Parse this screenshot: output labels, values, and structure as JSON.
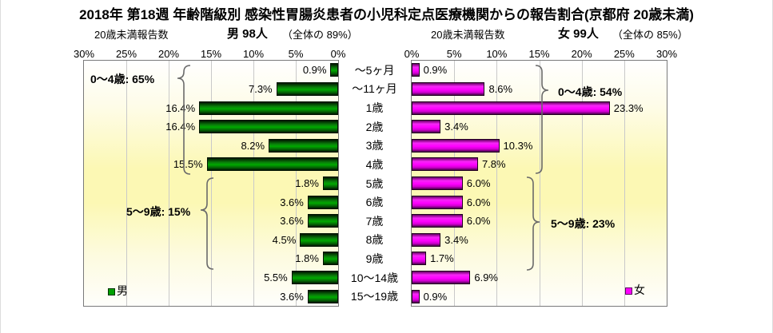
{
  "title": "2018年 第18週 年齢階級別 感染性胃腸炎患者の小児科定点医療機関からの報告割合(京都府 20歳未満)",
  "left_header": {
    "group_label": "20歳未満報告数",
    "stat": "男 98人",
    "total_note": "（全体の 89%）"
  },
  "right_header": {
    "group_label": "20歳未満報告数",
    "stat": "女 99人",
    "total_note": "（全体の 85%）"
  },
  "axis": {
    "left_ticks": [
      "30%",
      "25%",
      "20%",
      "15%",
      "10%",
      "5%",
      "0%"
    ],
    "right_ticks": [
      "0%",
      "5%",
      "10%",
      "15%",
      "20%",
      "25%",
      "30%"
    ]
  },
  "annotations": {
    "male_0_4": "0～4歳: 65%",
    "male_5_9": "5～9歳: 15%",
    "female_0_4": "0～4歳: 54%",
    "female_5_9": "5～9歳: 23%"
  },
  "legend": {
    "male": "男",
    "female": "女"
  },
  "colors": {
    "male_bar": "#00A000",
    "female_bar": "#FF00FF",
    "plot_band_yellow": "#FCF8B4",
    "gridline": "#C9C9C9",
    "plot_border": "#7A7A7A"
  },
  "chart_data": {
    "type": "bar",
    "orientation": "horizontal",
    "title": "2018年 第18週 年齢階級別 感染性胃腸炎患者の小児科定点医療機関からの報告割合(京都府 20歳未満)",
    "categories": [
      "～5ヶ月",
      "～11ヶ月",
      "1歳",
      "2歳",
      "3歳",
      "4歳",
      "5歳",
      "6歳",
      "7歳",
      "8歳",
      "9歳",
      "10～14歳",
      "15～19歳"
    ],
    "series": [
      {
        "name": "男",
        "values": [
          0.9,
          7.3,
          16.4,
          16.4,
          8.2,
          15.5,
          1.8,
          3.6,
          3.6,
          4.5,
          1.8,
          5.5,
          3.6
        ]
      },
      {
        "name": "女",
        "values": [
          0.9,
          8.6,
          23.3,
          3.4,
          10.3,
          7.8,
          6.0,
          6.0,
          6.0,
          3.4,
          1.7,
          6.9,
          0.9
        ]
      }
    ],
    "xlim": [
      0,
      30
    ],
    "tick_step": 5,
    "grid": true,
    "value_labels": "outside_bar_end",
    "legend_position": "inside_plot_bottom",
    "group_totals": {
      "male_0_4": 65,
      "male_5_9": 15,
      "female_0_4": 54,
      "female_5_9": 23
    }
  }
}
